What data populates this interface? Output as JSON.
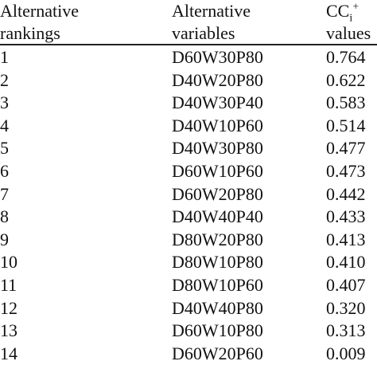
{
  "table": {
    "header": [
      [
        "Alternative",
        "rankings"
      ],
      [
        "Alternative",
        "variables"
      ],
      [
        {
          "base": "CC",
          "sub": "i",
          "sup": "+"
        },
        "values"
      ]
    ],
    "rows": [
      [
        "1",
        "D60W30P80",
        "0.764"
      ],
      [
        "2",
        "D40W20P80",
        "0.622"
      ],
      [
        "3",
        "D40W30P40",
        "0.583"
      ],
      [
        "4",
        "D40W10P60",
        "0.514"
      ],
      [
        "5",
        "D40W30P80",
        "0.477"
      ],
      [
        "6",
        "D60W10P60",
        "0.473"
      ],
      [
        "7",
        "D60W20P80",
        "0.442"
      ],
      [
        "8",
        "D40W40P40",
        "0.433"
      ],
      [
        "9",
        "D80W20P80",
        "0.413"
      ],
      [
        "10",
        "D80W10P80",
        "0.410"
      ],
      [
        "11",
        "D80W10P60",
        "0.407"
      ],
      [
        "12",
        "D40W40P80",
        "0.320"
      ],
      [
        "13",
        "D60W10P80",
        "0.313"
      ],
      [
        "14",
        "D60W20P60",
        "0.009"
      ]
    ]
  }
}
